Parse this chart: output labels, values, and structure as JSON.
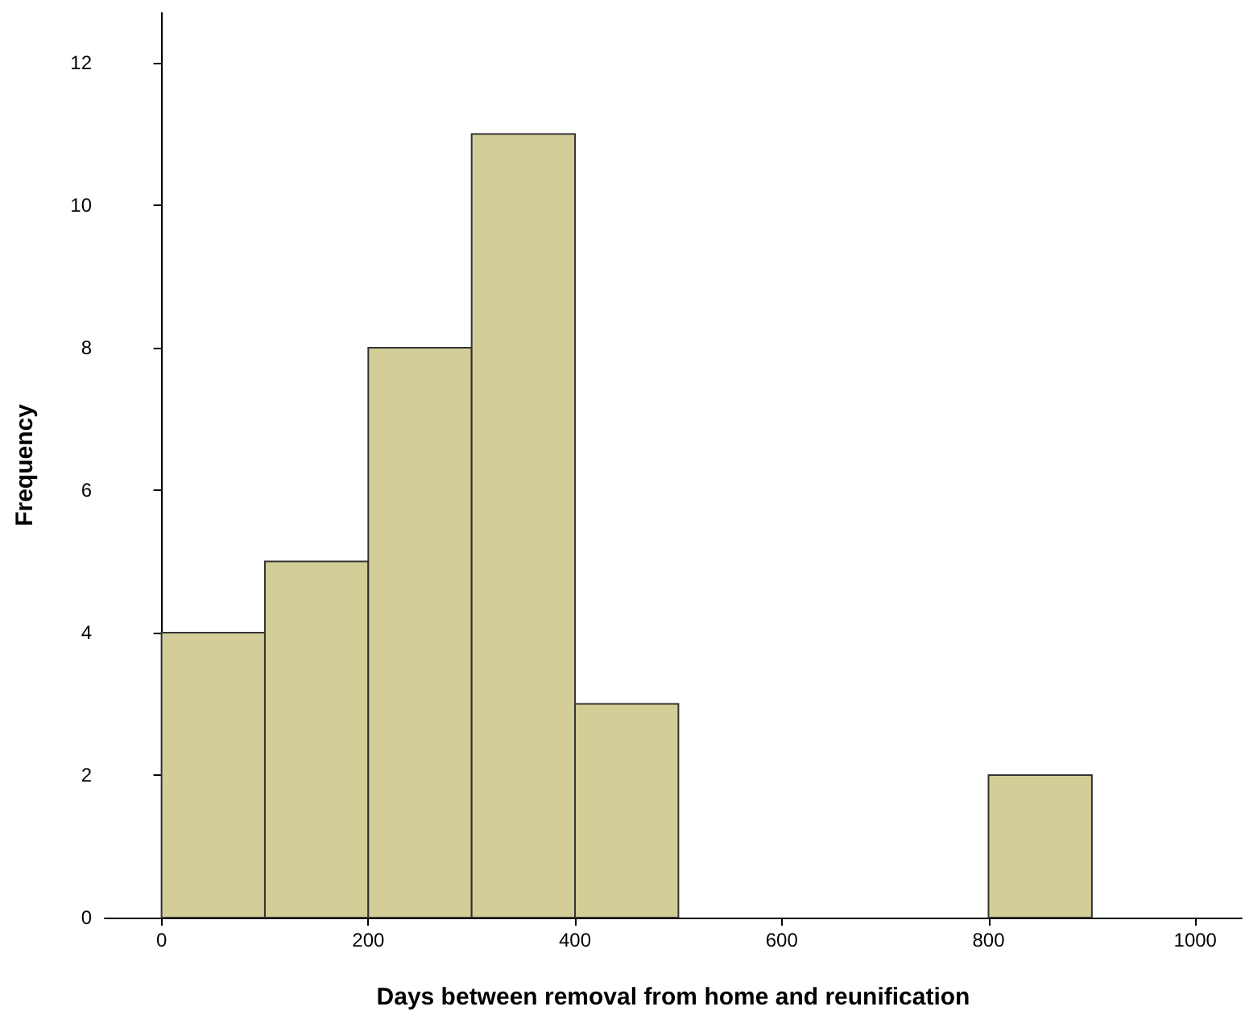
{
  "chart_data": {
    "type": "histogram",
    "xlabel": "Days between removal from home and reunification",
    "ylabel": "Frequency",
    "bins": [
      0,
      100,
      200,
      300,
      400,
      500,
      600,
      700,
      800,
      900
    ],
    "values": [
      4,
      5,
      8,
      11,
      3,
      0,
      0,
      0,
      2
    ],
    "color": "#d3ce97",
    "xlim": [
      -55,
      1045
    ],
    "xticks": [
      0,
      200,
      400,
      600,
      800,
      1000
    ],
    "ylim": [
      0,
      12.7
    ],
    "yticks": [
      0,
      2,
      4,
      6,
      8,
      10,
      12
    ]
  }
}
